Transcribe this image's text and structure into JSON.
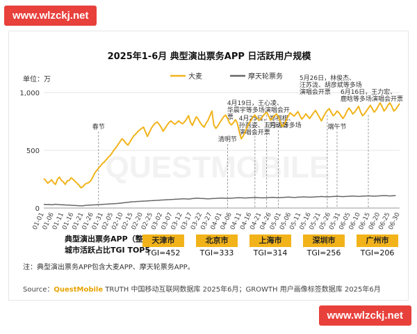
{
  "watermark": "www.wlzckj.net",
  "chart_data": {
    "type": "line",
    "title": "2025年1-6月 典型演出票务APP 日活跃用户规模",
    "unit_label": "单位：万",
    "ylim": [
      0,
      1000
    ],
    "y_ticks": [
      0,
      500,
      1000
    ],
    "y_tick_labels": [
      "0",
      "500",
      "1,000"
    ],
    "x_tick_labels": [
      "01-01",
      "01-06",
      "01-11",
      "01-16",
      "01-21",
      "01-26",
      "01-31",
      "02-05",
      "02-10",
      "02-15",
      "02-20",
      "02-25",
      "03-02",
      "03-07",
      "03-12",
      "03-17",
      "03-22",
      "03-27",
      "04-01",
      "04-06",
      "04-11",
      "04-16",
      "04-21",
      "04-26",
      "05-01",
      "05-06",
      "05-11",
      "05-16",
      "05-21",
      "05-26",
      "05-31",
      "06-05",
      "06-10",
      "06-15",
      "06-20",
      "06-25",
      "06-30"
    ],
    "series": [
      {
        "name": "大麦",
        "color": "#f2b31a",
        "values": [
          255,
          240,
          215,
          228,
          245,
          220,
          205,
          250,
          268,
          240,
          228,
          205,
          235,
          240,
          262,
          248,
          230,
          215,
          198,
          175,
          185,
          205,
          215,
          220,
          235,
          265,
          300,
          325,
          345,
          365,
          385,
          400,
          420,
          440,
          455,
          480,
          505,
          525,
          550,
          575,
          600,
          585,
          560,
          545,
          570,
          600,
          625,
          640,
          660,
          675,
          690,
          700,
          660,
          620,
          655,
          690,
          715,
          735,
          745,
          725,
          700,
          665,
          690,
          715,
          740,
          755,
          740,
          725,
          740,
          755,
          740,
          730,
          745,
          770,
          800,
          745,
          715,
          755,
          790,
          770,
          740,
          715,
          700,
          735,
          760,
          800,
          840,
          720,
          690,
          710,
          740,
          765,
          790,
          805,
          775,
          735,
          720,
          740,
          765,
          735,
          660,
          600,
          625,
          660,
          700,
          735,
          760,
          790,
          805,
          780,
          760,
          770,
          795,
          815,
          830,
          800,
          760,
          780,
          800,
          815,
          790,
          745,
          705,
          725,
          760,
          795,
          825,
          810,
          795,
          815,
          835,
          800,
          770,
          790,
          815,
          795,
          775,
          800,
          825,
          845,
          815,
          785,
          755,
          790,
          820,
          845,
          860,
          830,
          800,
          815,
          840,
          825,
          800,
          775,
          800,
          835,
          865,
          845,
          815,
          830,
          855,
          880,
          835,
          800,
          815,
          840,
          865,
          890,
          860,
          830,
          850,
          880,
          910,
          880,
          840,
          860,
          890,
          910,
          880,
          840,
          855,
          880,
          905
        ]
      },
      {
        "name": "摩天轮票务",
        "color": "#666666",
        "values": [
          30,
          32,
          30,
          31,
          29,
          30,
          33,
          31,
          30,
          28,
          29,
          27,
          26,
          25,
          24,
          23,
          22,
          21,
          20,
          19,
          20,
          22,
          24,
          25,
          26,
          27,
          28,
          29,
          30,
          31,
          32,
          33,
          34,
          35,
          36,
          37,
          38,
          39,
          40,
          42,
          44,
          46,
          48,
          50,
          52,
          54,
          55,
          56,
          57,
          58,
          59,
          60,
          61,
          62,
          63,
          64,
          65,
          66,
          67,
          68,
          69,
          70,
          71,
          72,
          73,
          74,
          75,
          76,
          77,
          78,
          79,
          80,
          80,
          79,
          78,
          80,
          82,
          84,
          86,
          85,
          84,
          83,
          82,
          81,
          80,
          81,
          82,
          83,
          84,
          85,
          86,
          87,
          86,
          85,
          84,
          85,
          86,
          87,
          88,
          89,
          90,
          89,
          88,
          87,
          88,
          89,
          90,
          91,
          92,
          91,
          90,
          89,
          88,
          89,
          90,
          91,
          92,
          93,
          92,
          91,
          90,
          91,
          92,
          93,
          94,
          95,
          94,
          93,
          92,
          93,
          94,
          95,
          96,
          97,
          96,
          95,
          94,
          95,
          96,
          97,
          98,
          99,
          100,
          99,
          98,
          97,
          98,
          99,
          100,
          101,
          102,
          101,
          100,
          99,
          100,
          101,
          102,
          103,
          104,
          103,
          102,
          101,
          102,
          103,
          104,
          105,
          106,
          105,
          104,
          103,
          104,
          105,
          106,
          107,
          108,
          107,
          106,
          105,
          106,
          107,
          108
        ]
      }
    ],
    "annotations": [
      {
        "label": "春节",
        "date_index": 28
      },
      {
        "label": "清明节",
        "date_index": 94
      },
      {
        "label": "4月19日，王心凌、华晨宇等多场演唱会开票",
        "date_index": 108
      },
      {
        "label": "4月25日，郑祺棋、孙燕姿、五月天等多场演唱会开票",
        "date_index": 114
      },
      {
        "label": "劳动节",
        "date_index": 120
      },
      {
        "label": "5月26日，林俊杰、汪苏泷、胡彦斌等多场演唱会开票",
        "date_index": 145
      },
      {
        "label": "端午节",
        "date_index": 150
      },
      {
        "label": "6月16日，王力宏、鹿晗等多场演唱会开票",
        "date_index": 166
      }
    ],
    "tgi_table": {
      "title_line1": "典型演出票务APP（整体）",
      "title_line2": "城市活跃占比TGI TOP5",
      "cities": [
        {
          "name": "天津市",
          "tgi": "TGI=452"
        },
        {
          "name": "北京市",
          "tgi": "TGI=333"
        },
        {
          "name": "上海市",
          "tgi": "TGI=314"
        },
        {
          "name": "深圳市",
          "tgi": "TGI=256"
        },
        {
          "name": "广州市",
          "tgi": "TGI=206"
        }
      ]
    }
  },
  "note": "注：典型演出票务APP包含大麦APP、摩天轮票务APP。",
  "source_prefix": "Source：",
  "source_brand": "QuestMobile",
  "source_rest": " TRUTH 中国移动互联网数据库 2025年6月；GROWTH 用户画像标签数据库 2025年6月",
  "bg_watermark": "QUESTMOBILE"
}
